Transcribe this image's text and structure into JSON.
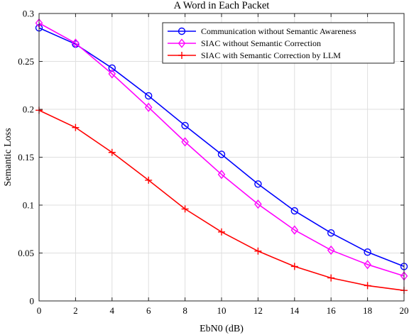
{
  "chart_data": {
    "type": "line",
    "title": "A Word in Each Packet",
    "xlabel": "EbN0 (dB)",
    "ylabel": "Semantic Loss",
    "xlim": [
      0,
      20
    ],
    "ylim": [
      0,
      0.3
    ],
    "xticks": [
      0,
      2,
      4,
      6,
      8,
      10,
      12,
      14,
      16,
      18,
      20
    ],
    "xtick_labels": [
      "0",
      "2",
      "4",
      "6",
      "8",
      "10",
      "12",
      "14",
      "16",
      "18",
      "20"
    ],
    "yticks": [
      0,
      0.05,
      0.1,
      0.15,
      0.2,
      0.25,
      0.3
    ],
    "ytick_labels": [
      "0",
      "0.05",
      "0.1",
      "0.15",
      "0.2",
      "0.25",
      "0.3"
    ],
    "grid": true,
    "legend_position": "top-right",
    "x": [
      0,
      2,
      4,
      6,
      8,
      10,
      12,
      14,
      16,
      18,
      20
    ],
    "series": [
      {
        "name": "Communication without Semantic Awareness",
        "color": "#0000ff",
        "marker": "circle",
        "values": [
          0.285,
          0.268,
          0.243,
          0.214,
          0.183,
          0.153,
          0.122,
          0.094,
          0.071,
          0.051,
          0.036
        ]
      },
      {
        "name": "SIAC without Semantic Correction",
        "color": "#ff00ff",
        "marker": "diamond",
        "values": [
          0.29,
          0.269,
          0.237,
          0.202,
          0.166,
          0.132,
          0.101,
          0.074,
          0.053,
          0.038,
          0.026
        ]
      },
      {
        "name": "SIAC with Semantic Correction by LLM",
        "color": "#ff0000",
        "marker": "plus",
        "values": [
          0.199,
          0.181,
          0.155,
          0.126,
          0.096,
          0.072,
          0.052,
          0.036,
          0.024,
          0.016,
          0.011
        ]
      }
    ]
  }
}
